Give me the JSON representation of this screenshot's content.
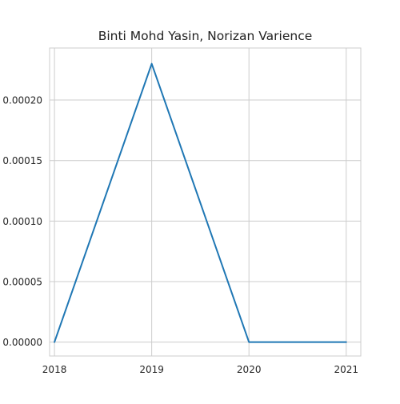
{
  "chart_data": {
    "type": "line",
    "title": "Binti Mohd Yasin, Norizan Varience",
    "xlabel": "",
    "ylabel": "",
    "x": [
      2018,
      2019,
      2020,
      2021
    ],
    "x_tick_labels": [
      "2018",
      "2019",
      "2020",
      "2021"
    ],
    "y_tick_values": [
      0,
      5e-05,
      0.0001,
      0.00015,
      0.0002
    ],
    "y_tick_labels": [
      "0.00000",
      "0.00005",
      "0.00010",
      "0.00015",
      "0.00020"
    ],
    "series": [
      {
        "values": [
          0.0,
          0.00023,
          0.0,
          0.0
        ],
        "color": "#1f77b4"
      }
    ],
    "xlim": [
      2017.95,
      2021.15
    ],
    "ylim": [
      -1.15e-05,
      0.000243
    ],
    "grid": true,
    "style": "whitegrid",
    "colors": {
      "grid": "#cccccc",
      "axes_edge": "#cccccc",
      "text": "#262626"
    }
  }
}
